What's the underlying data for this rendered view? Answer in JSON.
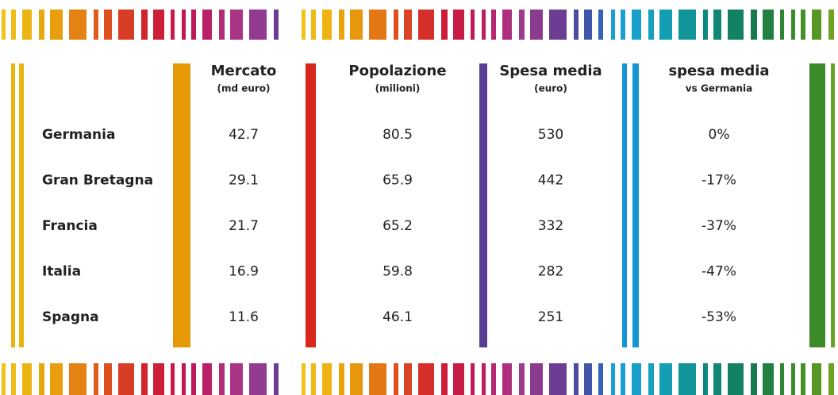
{
  "table": {
    "headers": [
      {
        "title": "Mercato",
        "subtitle": "(md euro)"
      },
      {
        "title": "Popolazione",
        "subtitle": "(milioni)"
      },
      {
        "title": "Spesa media",
        "subtitle": "(euro)"
      },
      {
        "title": "spesa media",
        "subtitle": "vs Germania"
      }
    ],
    "rows": [
      {
        "label": "Germania",
        "cells": [
          "42.7",
          "80.5",
          "530",
          "0%"
        ]
      },
      {
        "label": "Gran Bretagna",
        "cells": [
          "29.1",
          "65.9",
          "442",
          "-17%"
        ]
      },
      {
        "label": "Francia",
        "cells": [
          "21.7",
          "65.2",
          "332",
          "-37%"
        ]
      },
      {
        "label": "Italia",
        "cells": [
          "16.9",
          "59.8",
          "282",
          "-47%"
        ]
      },
      {
        "label": "Spagna",
        "cells": [
          "11.6",
          "46.1",
          "251",
          "-53%"
        ]
      }
    ]
  }
}
